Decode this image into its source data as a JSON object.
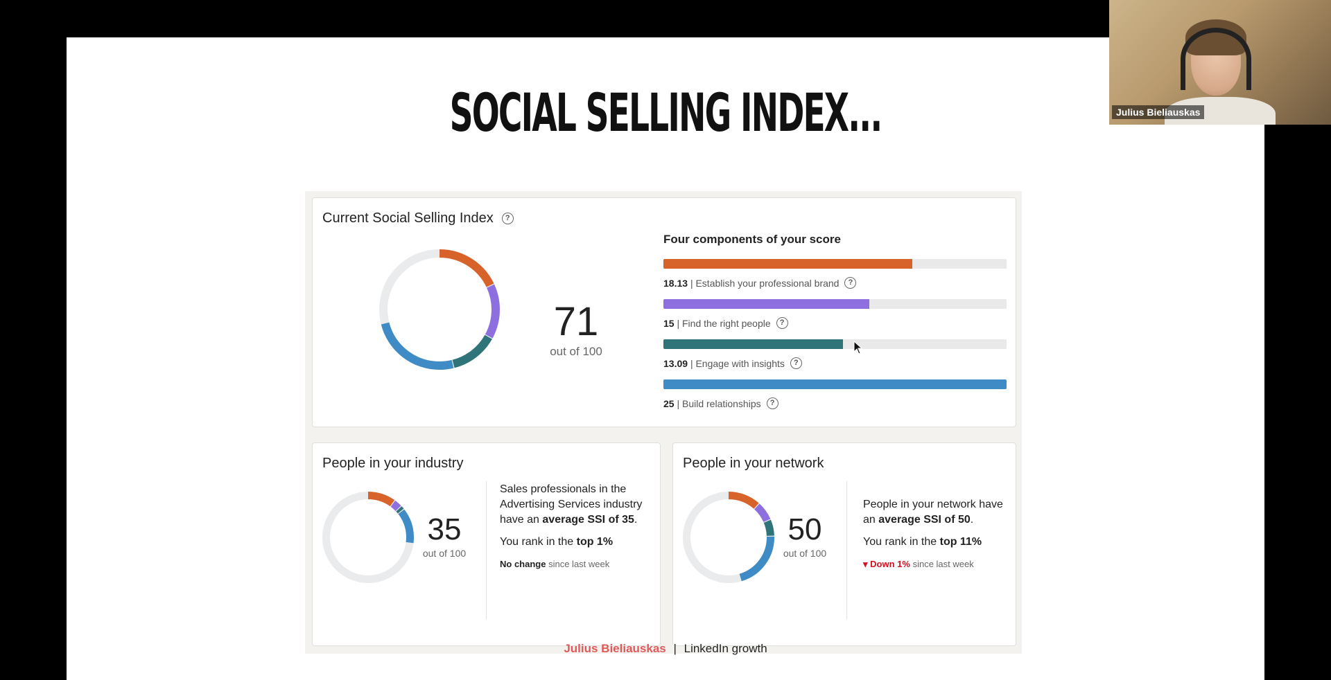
{
  "slide": {
    "title": "SOCIAL SELLING INDEX...",
    "footer": {
      "brand": "Julius Bieliauskas",
      "separator": "|",
      "subtitle": "LinkedIn growth"
    }
  },
  "ssi": {
    "title": "Current Social Selling Index",
    "score": "71",
    "out_of": "out of 100",
    "components_title": "Four components of your score",
    "components": [
      {
        "value": "18.13",
        "label": "| Establish your professional brand",
        "fill_fraction": 0.725,
        "color": "#d8632a"
      },
      {
        "value": "15",
        "label": "| Find the right people",
        "fill_fraction": 0.6,
        "color": "#8d6fe0"
      },
      {
        "value": "13.09",
        "label": "| Engage with insights",
        "fill_fraction": 0.524,
        "color": "#2e7479"
      },
      {
        "value": "25",
        "label": "| Build relationships",
        "fill_fraction": 1.0,
        "color": "#3e8bc5"
      }
    ]
  },
  "industry": {
    "title": "People in your industry",
    "score": "35",
    "out_of": "out of 100",
    "line1": "Sales professionals in the Advertising Services industry have an",
    "bold1": "average SSI of 35",
    "end1": ".",
    "rank_prefix": "You rank in the",
    "rank_bold": "top 1%",
    "change_bold": "No change",
    "change_rest": "since last week",
    "segments": [
      10.1,
      3.0,
      1.4,
      12.8
    ]
  },
  "network": {
    "title": "People in your network",
    "score": "50",
    "out_of": "out of 100",
    "line1": "People in your network have an",
    "bold1": "average SSI of 50",
    "end1": ".",
    "rank_prefix": "You rank in the",
    "rank_bold": "top 11%",
    "change_arrow": "▾",
    "change_bold": "Down 1%",
    "change_rest": "since last week",
    "segments": [
      11.8,
      6.9,
      6.0,
      21.0
    ]
  },
  "webcam": {
    "name": "Julius Bieliauskas"
  },
  "colors": {
    "brand": "#d8632a",
    "people": "#8d6fe0",
    "insights": "#2e7479",
    "relationships": "#3e8bc5",
    "track": "#e9ebec"
  }
}
